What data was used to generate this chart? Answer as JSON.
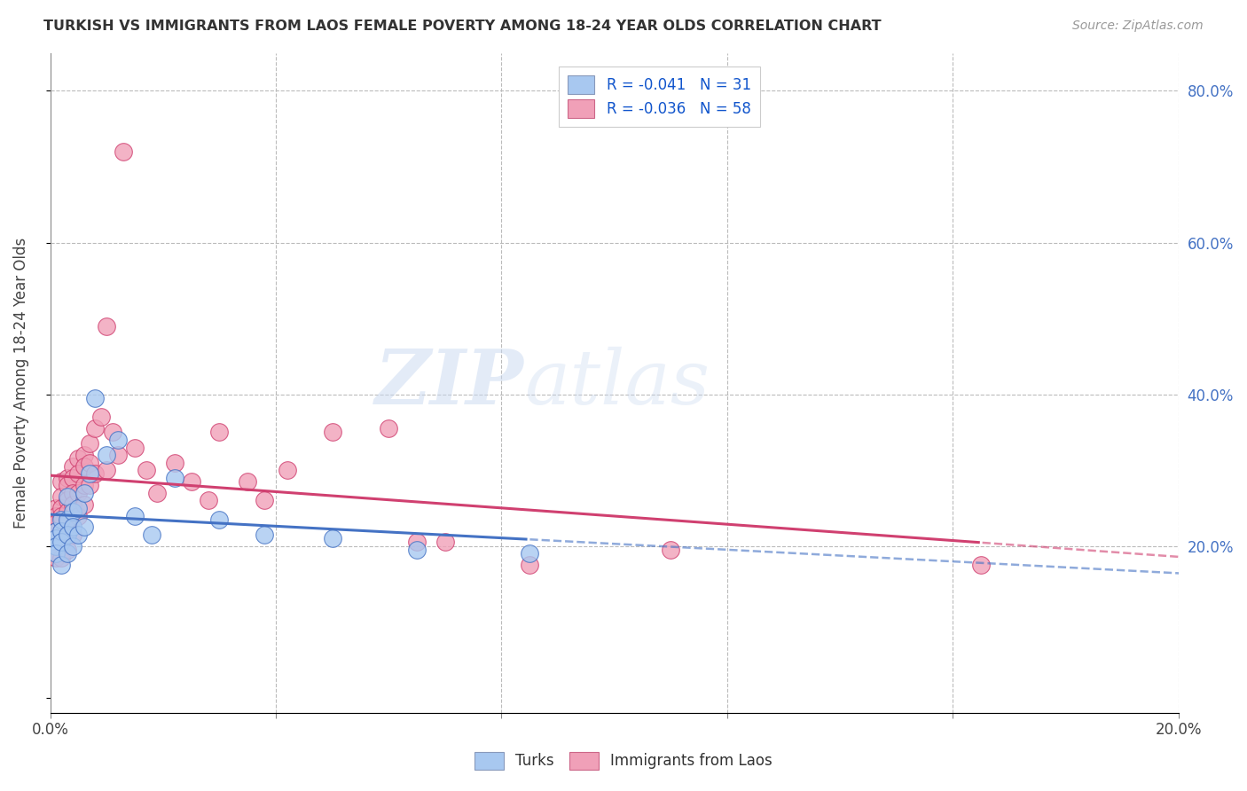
{
  "title": "TURKISH VS IMMIGRANTS FROM LAOS FEMALE POVERTY AMONG 18-24 YEAR OLDS CORRELATION CHART",
  "source": "Source: ZipAtlas.com",
  "ylabel": "Female Poverty Among 18-24 Year Olds",
  "xlim": [
    0.0,
    0.2
  ],
  "ylim": [
    -0.02,
    0.85
  ],
  "turks_R": "-0.041",
  "turks_N": "31",
  "laos_R": "-0.036",
  "laos_N": "58",
  "turks_color": "#A8C8F0",
  "laos_color": "#F0A0B8",
  "turks_line_color": "#4472C4",
  "laos_line_color": "#D04070",
  "background_color": "#FFFFFF",
  "grid_color": "#BBBBBB",
  "watermark_zip": "ZIP",
  "watermark_atlas": "atlas",
  "turks_x": [
    0.001,
    0.001,
    0.001,
    0.001,
    0.002,
    0.002,
    0.002,
    0.002,
    0.003,
    0.003,
    0.003,
    0.003,
    0.004,
    0.004,
    0.004,
    0.005,
    0.005,
    0.006,
    0.006,
    0.007,
    0.008,
    0.01,
    0.012,
    0.015,
    0.018,
    0.022,
    0.03,
    0.038,
    0.05,
    0.065,
    0.085
  ],
  "turks_y": [
    0.22,
    0.21,
    0.2,
    0.19,
    0.235,
    0.22,
    0.205,
    0.175,
    0.265,
    0.235,
    0.215,
    0.19,
    0.245,
    0.225,
    0.2,
    0.25,
    0.215,
    0.27,
    0.225,
    0.295,
    0.395,
    0.32,
    0.34,
    0.24,
    0.215,
    0.29,
    0.235,
    0.215,
    0.21,
    0.195,
    0.19
  ],
  "laos_x": [
    0.001,
    0.001,
    0.001,
    0.001,
    0.001,
    0.002,
    0.002,
    0.002,
    0.002,
    0.002,
    0.002,
    0.003,
    0.003,
    0.003,
    0.003,
    0.003,
    0.003,
    0.004,
    0.004,
    0.004,
    0.004,
    0.004,
    0.005,
    0.005,
    0.005,
    0.005,
    0.006,
    0.006,
    0.006,
    0.006,
    0.007,
    0.007,
    0.007,
    0.008,
    0.008,
    0.009,
    0.01,
    0.01,
    0.011,
    0.012,
    0.013,
    0.015,
    0.017,
    0.019,
    0.022,
    0.025,
    0.028,
    0.03,
    0.035,
    0.038,
    0.042,
    0.05,
    0.06,
    0.065,
    0.07,
    0.085,
    0.11,
    0.165
  ],
  "laos_y": [
    0.25,
    0.24,
    0.23,
    0.22,
    0.185,
    0.285,
    0.265,
    0.25,
    0.24,
    0.22,
    0.185,
    0.29,
    0.28,
    0.26,
    0.245,
    0.23,
    0.195,
    0.305,
    0.29,
    0.27,
    0.255,
    0.215,
    0.315,
    0.295,
    0.27,
    0.24,
    0.32,
    0.305,
    0.28,
    0.255,
    0.335,
    0.31,
    0.28,
    0.355,
    0.295,
    0.37,
    0.49,
    0.3,
    0.35,
    0.32,
    0.72,
    0.33,
    0.3,
    0.27,
    0.31,
    0.285,
    0.26,
    0.35,
    0.285,
    0.26,
    0.3,
    0.35,
    0.355,
    0.205,
    0.205,
    0.175,
    0.195,
    0.175
  ]
}
